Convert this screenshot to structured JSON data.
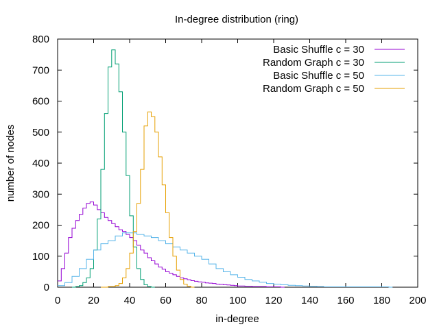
{
  "chart_data": {
    "type": "line",
    "title": "In-degree distribution (ring)",
    "xlabel": "in-degree",
    "ylabel": "number of nodes",
    "xlim": [
      0,
      200
    ],
    "ylim": [
      0,
      800
    ],
    "x_ticks": [
      0,
      20,
      40,
      60,
      80,
      100,
      120,
      140,
      160,
      180,
      200
    ],
    "y_ticks": [
      0,
      100,
      200,
      300,
      400,
      500,
      600,
      700,
      800
    ],
    "grid": false,
    "legend_position": "top-right",
    "step": true,
    "series": [
      {
        "name": "Basic Shuffle c = 30",
        "color": "#9400d3",
        "points": [
          [
            0,
            20
          ],
          [
            2,
            60
          ],
          [
            4,
            110
          ],
          [
            6,
            160
          ],
          [
            8,
            190
          ],
          [
            10,
            215
          ],
          [
            12,
            235
          ],
          [
            14,
            255
          ],
          [
            16,
            270
          ],
          [
            18,
            275
          ],
          [
            20,
            265
          ],
          [
            22,
            250
          ],
          [
            24,
            240
          ],
          [
            26,
            225
          ],
          [
            28,
            215
          ],
          [
            30,
            205
          ],
          [
            32,
            195
          ],
          [
            34,
            185
          ],
          [
            36,
            180
          ],
          [
            38,
            170
          ],
          [
            40,
            160
          ],
          [
            42,
            150
          ],
          [
            44,
            135
          ],
          [
            46,
            120
          ],
          [
            48,
            110
          ],
          [
            50,
            95
          ],
          [
            52,
            85
          ],
          [
            54,
            75
          ],
          [
            56,
            65
          ],
          [
            58,
            58
          ],
          [
            60,
            50
          ],
          [
            62,
            45
          ],
          [
            64,
            40
          ],
          [
            66,
            35
          ],
          [
            68,
            30
          ],
          [
            70,
            27
          ],
          [
            72,
            24
          ],
          [
            74,
            21
          ],
          [
            76,
            19
          ],
          [
            78,
            17
          ],
          [
            80,
            16
          ],
          [
            82,
            14
          ],
          [
            84,
            13
          ],
          [
            86,
            12
          ],
          [
            88,
            10
          ],
          [
            90,
            9
          ],
          [
            92,
            8
          ],
          [
            94,
            7
          ],
          [
            96,
            6
          ],
          [
            98,
            5
          ],
          [
            100,
            4
          ],
          [
            104,
            3
          ],
          [
            108,
            2
          ],
          [
            112,
            2
          ],
          [
            116,
            1
          ],
          [
            120,
            1
          ],
          [
            124,
            0
          ]
        ]
      },
      {
        "name": "Random Graph c = 30",
        "color": "#009e73",
        "points": [
          [
            8,
            0
          ],
          [
            10,
            2
          ],
          [
            12,
            5
          ],
          [
            14,
            15
          ],
          [
            16,
            30
          ],
          [
            18,
            60
          ],
          [
            20,
            120
          ],
          [
            22,
            220
          ],
          [
            24,
            380
          ],
          [
            26,
            560
          ],
          [
            28,
            710
          ],
          [
            30,
            765
          ],
          [
            32,
            720
          ],
          [
            34,
            630
          ],
          [
            36,
            500
          ],
          [
            38,
            360
          ],
          [
            40,
            230
          ],
          [
            42,
            130
          ],
          [
            44,
            60
          ],
          [
            46,
            25
          ],
          [
            48,
            8
          ],
          [
            50,
            2
          ],
          [
            52,
            0
          ]
        ]
      },
      {
        "name": "Basic Shuffle c = 50",
        "color": "#56b4e9",
        "points": [
          [
            0,
            5
          ],
          [
            4,
            15
          ],
          [
            8,
            35
          ],
          [
            12,
            60
          ],
          [
            16,
            90
          ],
          [
            20,
            120
          ],
          [
            24,
            140
          ],
          [
            28,
            150
          ],
          [
            32,
            165
          ],
          [
            36,
            175
          ],
          [
            40,
            175
          ],
          [
            44,
            170
          ],
          [
            48,
            165
          ],
          [
            52,
            160
          ],
          [
            56,
            150
          ],
          [
            60,
            140
          ],
          [
            64,
            130
          ],
          [
            68,
            120
          ],
          [
            72,
            110
          ],
          [
            76,
            100
          ],
          [
            80,
            90
          ],
          [
            84,
            75
          ],
          [
            88,
            60
          ],
          [
            92,
            50
          ],
          [
            96,
            40
          ],
          [
            100,
            32
          ],
          [
            104,
            25
          ],
          [
            108,
            20
          ],
          [
            112,
            16
          ],
          [
            116,
            12
          ],
          [
            120,
            10
          ],
          [
            124,
            8
          ],
          [
            128,
            6
          ],
          [
            132,
            5
          ],
          [
            136,
            4
          ],
          [
            140,
            3
          ],
          [
            144,
            2
          ],
          [
            148,
            1
          ],
          [
            152,
            1
          ],
          [
            156,
            1
          ],
          [
            164,
            1
          ],
          [
            172,
            1
          ],
          [
            180,
            1
          ],
          [
            184,
            0
          ]
        ]
      },
      {
        "name": "Random Graph c = 50",
        "color": "#e69f00",
        "points": [
          [
            24,
            0
          ],
          [
            28,
            2
          ],
          [
            32,
            5
          ],
          [
            34,
            12
          ],
          [
            36,
            30
          ],
          [
            38,
            60
          ],
          [
            40,
            110
          ],
          [
            42,
            180
          ],
          [
            44,
            270
          ],
          [
            46,
            380
          ],
          [
            48,
            520
          ],
          [
            50,
            565
          ],
          [
            52,
            550
          ],
          [
            54,
            500
          ],
          [
            56,
            420
          ],
          [
            58,
            330
          ],
          [
            60,
            240
          ],
          [
            62,
            160
          ],
          [
            64,
            100
          ],
          [
            66,
            55
          ],
          [
            68,
            25
          ],
          [
            70,
            10
          ],
          [
            72,
            3
          ],
          [
            74,
            0
          ]
        ]
      }
    ]
  }
}
